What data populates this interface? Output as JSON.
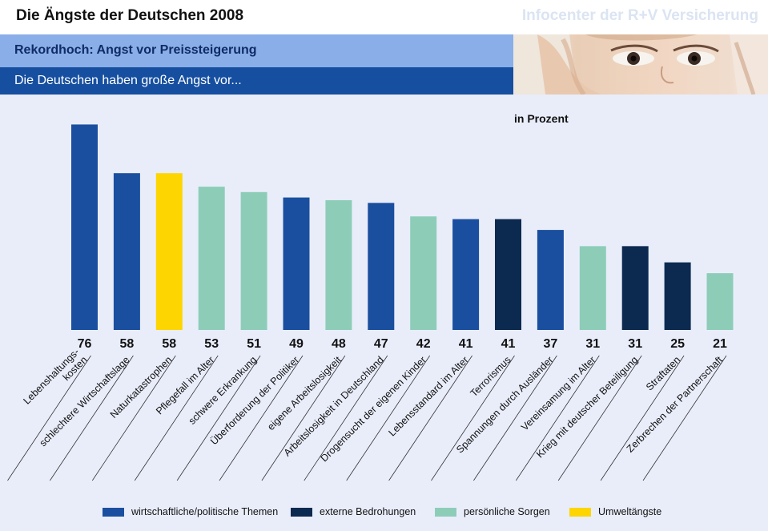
{
  "header": {
    "title": "Die Ängste der Deutschen 2008",
    "source": "Infocenter der R+V Versicherung",
    "subtitle": "Rekordhoch: Angst vor Preissteigerung",
    "lead": "Die Deutschen haben große Angst vor..."
  },
  "chart_data": {
    "type": "bar",
    "unit_label": "in Prozent",
    "categories": [
      [
        "Lebenshaltungs-",
        "kosten"
      ],
      [
        "schlechtere Wirtschaftslage"
      ],
      [
        "Naturkatastrophen"
      ],
      [
        "Pflegefall im Alter"
      ],
      [
        "schwere Erkrankung"
      ],
      [
        "Überforderung der Politiker"
      ],
      [
        "eigene Arbeitslosigkeit"
      ],
      [
        "Arbeitslosigkeit in Deutschland"
      ],
      [
        "Drogensucht der eigenen Kinder"
      ],
      [
        "Lebensstandard im Alter"
      ],
      [
        "Terrorismus"
      ],
      [
        "Spannungen durch Ausländer"
      ],
      [
        "Vereinsamung im Alter"
      ],
      [
        "Krieg mit deutscher Beteiligung"
      ],
      [
        "Straftaten"
      ],
      [
        "Zerbrechen der Partnerschaft"
      ]
    ],
    "values": [
      76,
      58,
      58,
      53,
      51,
      49,
      48,
      47,
      42,
      41,
      41,
      37,
      31,
      31,
      25,
      21
    ],
    "groups": [
      "wirtschaftlich",
      "wirtschaftlich",
      "umwelt",
      "persoenlich",
      "persoenlich",
      "wirtschaftlich",
      "persoenlich",
      "wirtschaftlich",
      "persoenlich",
      "wirtschaftlich",
      "extern",
      "wirtschaftlich",
      "persoenlich",
      "extern",
      "extern",
      "persoenlich"
    ],
    "legend": [
      {
        "key": "wirtschaftlich",
        "label": "wirtschaftliche/politische Themen",
        "color": "#1a4f9f"
      },
      {
        "key": "extern",
        "label": "externe Bedrohungen",
        "color": "#0c2a50"
      },
      {
        "key": "persoenlich",
        "label": "persönliche Sorgen",
        "color": "#8dcdb8"
      },
      {
        "key": "umwelt",
        "label": "Umweltängste",
        "color": "#fdd500"
      }
    ],
    "ylim": [
      0,
      80
    ],
    "grid": false,
    "legend_position": "bottom"
  }
}
